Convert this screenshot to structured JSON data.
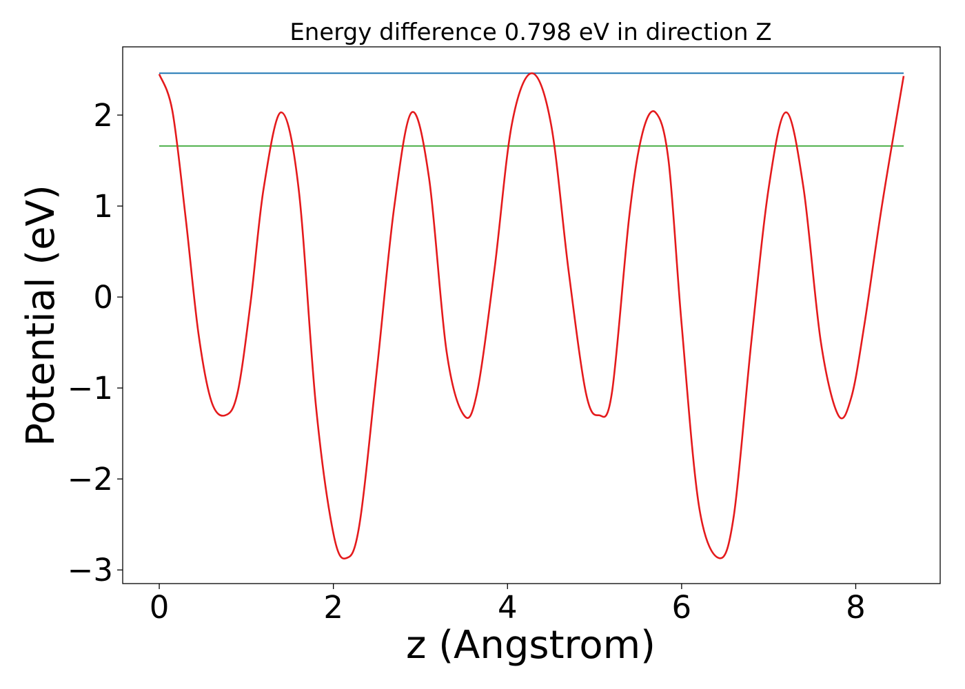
{
  "chart_data": {
    "type": "line",
    "title": "Energy difference 0.798 eV in direction Z",
    "xlabel": "z (Angstrom)",
    "ylabel": "Potential (eV)",
    "xlim": [
      -0.42,
      8.97
    ],
    "ylim": [
      -3.15,
      2.75
    ],
    "grid": false,
    "legend": "none",
    "x_ticks": [
      {
        "value": 0,
        "label": "0"
      },
      {
        "value": 2,
        "label": "2"
      },
      {
        "value": 4,
        "label": "4"
      },
      {
        "value": 6,
        "label": "6"
      },
      {
        "value": 8,
        "label": "8"
      }
    ],
    "y_ticks": [
      {
        "value": -3,
        "label": "−3"
      },
      {
        "value": -2,
        "label": "−2"
      },
      {
        "value": -1,
        "label": "−1"
      },
      {
        "value": 0,
        "label": "0"
      },
      {
        "value": 1,
        "label": "1"
      },
      {
        "value": 2,
        "label": "2"
      }
    ],
    "series": [
      {
        "color": "#e41a1c",
        "x": [
          0,
          0.15,
          0.3,
          0.45,
          0.6,
          0.76,
          0.9,
          1.05,
          1.2,
          1.4,
          1.6,
          1.8,
          2.0,
          2.15,
          2.3,
          2.5,
          2.7,
          2.9,
          3.1,
          3.3,
          3.5,
          3.65,
          3.85,
          4.05,
          4.28,
          4.5,
          4.7,
          4.9,
          5.05,
          5.2,
          5.4,
          5.55,
          5.7,
          5.85,
          6.0,
          6.2,
          6.43,
          6.6,
          6.8,
          7.0,
          7.2,
          7.4,
          7.6,
          7.8,
          7.95,
          8.1,
          8.3,
          8.55
        ],
        "y": [
          2.45,
          2.05,
          0.9,
          -0.4,
          -1.15,
          -1.3,
          -1.05,
          -0.05,
          1.2,
          2.03,
          1.2,
          -1.2,
          -2.6,
          -2.87,
          -2.5,
          -0.8,
          1.0,
          2.03,
          1.3,
          -0.6,
          -1.3,
          -1.05,
          0.3,
          1.9,
          2.46,
          1.9,
          0.3,
          -1.05,
          -1.3,
          -1.05,
          0.9,
          1.8,
          2.03,
          1.5,
          -0.3,
          -2.3,
          -2.87,
          -2.4,
          -0.5,
          1.2,
          2.03,
          1.2,
          -0.5,
          -1.3,
          -1.1,
          -0.3,
          1.0,
          2.43
        ]
      },
      {
        "color": "#1f77b4",
        "x": [
          0,
          8.55
        ],
        "y": [
          2.46,
          2.46
        ]
      },
      {
        "color": "#4daf4a",
        "x": [
          0,
          8.55
        ],
        "y": [
          1.66,
          1.66
        ]
      }
    ]
  }
}
